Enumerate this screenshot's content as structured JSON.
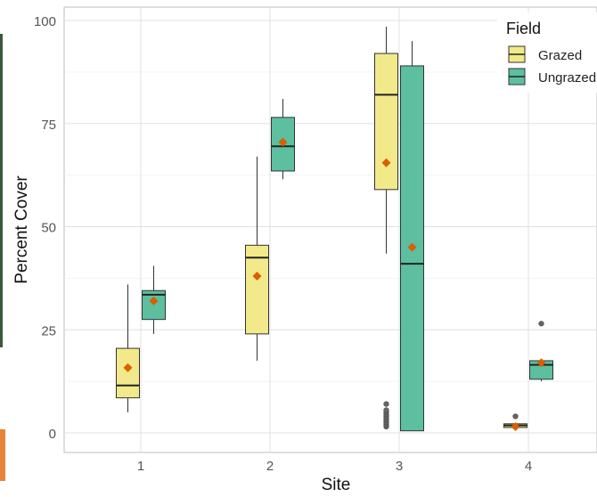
{
  "chart_data": {
    "type": "boxplot",
    "xlabel": "Site",
    "ylabel": "Percent Cover",
    "categories": [
      "1",
      "2",
      "3",
      "4"
    ],
    "ylim": [
      0,
      100
    ],
    "yticks": [
      0,
      25,
      50,
      75,
      100
    ],
    "grid": true,
    "legend": {
      "title": "Field",
      "placement": "top-right",
      "entries": [
        "Grazed",
        "Ungrazed"
      ]
    },
    "series": [
      {
        "name": "Grazed",
        "color": "#f2e98a",
        "boxes": [
          {
            "category": "1",
            "min": 5,
            "q1": 8.5,
            "median": 11.5,
            "q3": 20.5,
            "max": 36,
            "mean": 15.8,
            "outliers": []
          },
          {
            "category": "2",
            "min": 17.5,
            "q1": 24,
            "median": 42.5,
            "q3": 45.5,
            "max": 67,
            "mean": 38,
            "outliers": []
          },
          {
            "category": "3",
            "min": 43.5,
            "q1": 59,
            "median": 82,
            "q3": 92,
            "max": 98.5,
            "mean": 65.5,
            "outliers": [
              1.5,
              2,
              2.5,
              3,
              3.5,
              4,
              4.5,
              5,
              5.5,
              7
            ]
          },
          {
            "category": "4",
            "min": 1.2,
            "q1": 1.3,
            "median": 1.8,
            "q3": 2.2,
            "max": 2.4,
            "mean": 1.5,
            "outliers": [
              4
            ]
          }
        ]
      },
      {
        "name": "Ungrazed",
        "color": "#5cbfa0",
        "boxes": [
          {
            "category": "1",
            "min": 24,
            "q1": 27.5,
            "median": 33.5,
            "q3": 34.5,
            "max": 40.5,
            "mean": 32,
            "outliers": []
          },
          {
            "category": "2",
            "min": 61.5,
            "q1": 63.5,
            "median": 69.5,
            "q3": 76.5,
            "max": 81,
            "mean": 70.5,
            "outliers": []
          },
          {
            "category": "3",
            "min": 0.5,
            "q1": 0.5,
            "median": 41,
            "q3": 89,
            "max": 95,
            "mean": 45,
            "outliers": []
          },
          {
            "category": "4",
            "min": 12.5,
            "q1": 13,
            "median": 16.5,
            "q3": 17.5,
            "max": 17.5,
            "mean": 17,
            "outliers": [
              26.5
            ]
          }
        ]
      }
    ],
    "mean_marker_color": "#d95f02",
    "outlier_color": "#666666"
  }
}
